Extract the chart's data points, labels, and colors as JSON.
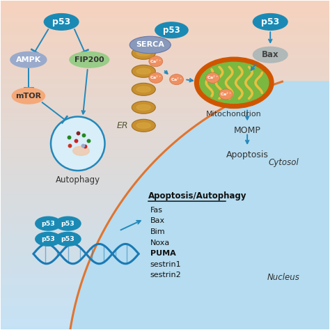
{
  "bg_top_color": "#f5d5c0",
  "bg_bottom_color": "#c8e6f5",
  "cytosol_label": "Cytosol",
  "nucleus_label": "Nucleus",
  "p53_color": "#1a8ab5",
  "p53_text_color": "#ffffff",
  "ampk_color": "#99aacc",
  "ampk_text_color": "#ffffff",
  "fip200_color": "#99cc88",
  "fip200_text_color": "#333333",
  "mtor_color": "#f5a878",
  "mtor_text_color": "#333333",
  "bax_color": "#b0b8b8",
  "bax_text_color": "#444444",
  "arrow_color": "#2288bb",
  "mitochondrion_outer": "#d05500",
  "mitochondrion_inner": "#7ab840",
  "mitochondrion_cristae": "#e8c040",
  "er_color": "#b8882a",
  "ca_color": "#f0a060",
  "autophagy_circle_color": "#d8eef8",
  "autophagy_circle_edge": "#2288bb",
  "dna_color": "#1a7ab5",
  "gene_list": [
    "Fas",
    "Bax",
    "Bim",
    "Noxa",
    "PUMA",
    "sestrin1",
    "sestrin2"
  ],
  "gene_list_bold": [
    "PUMA"
  ],
  "gene_list_title": "Apoptosis/Autophagy",
  "nucleus_arc_color": "#e07530"
}
